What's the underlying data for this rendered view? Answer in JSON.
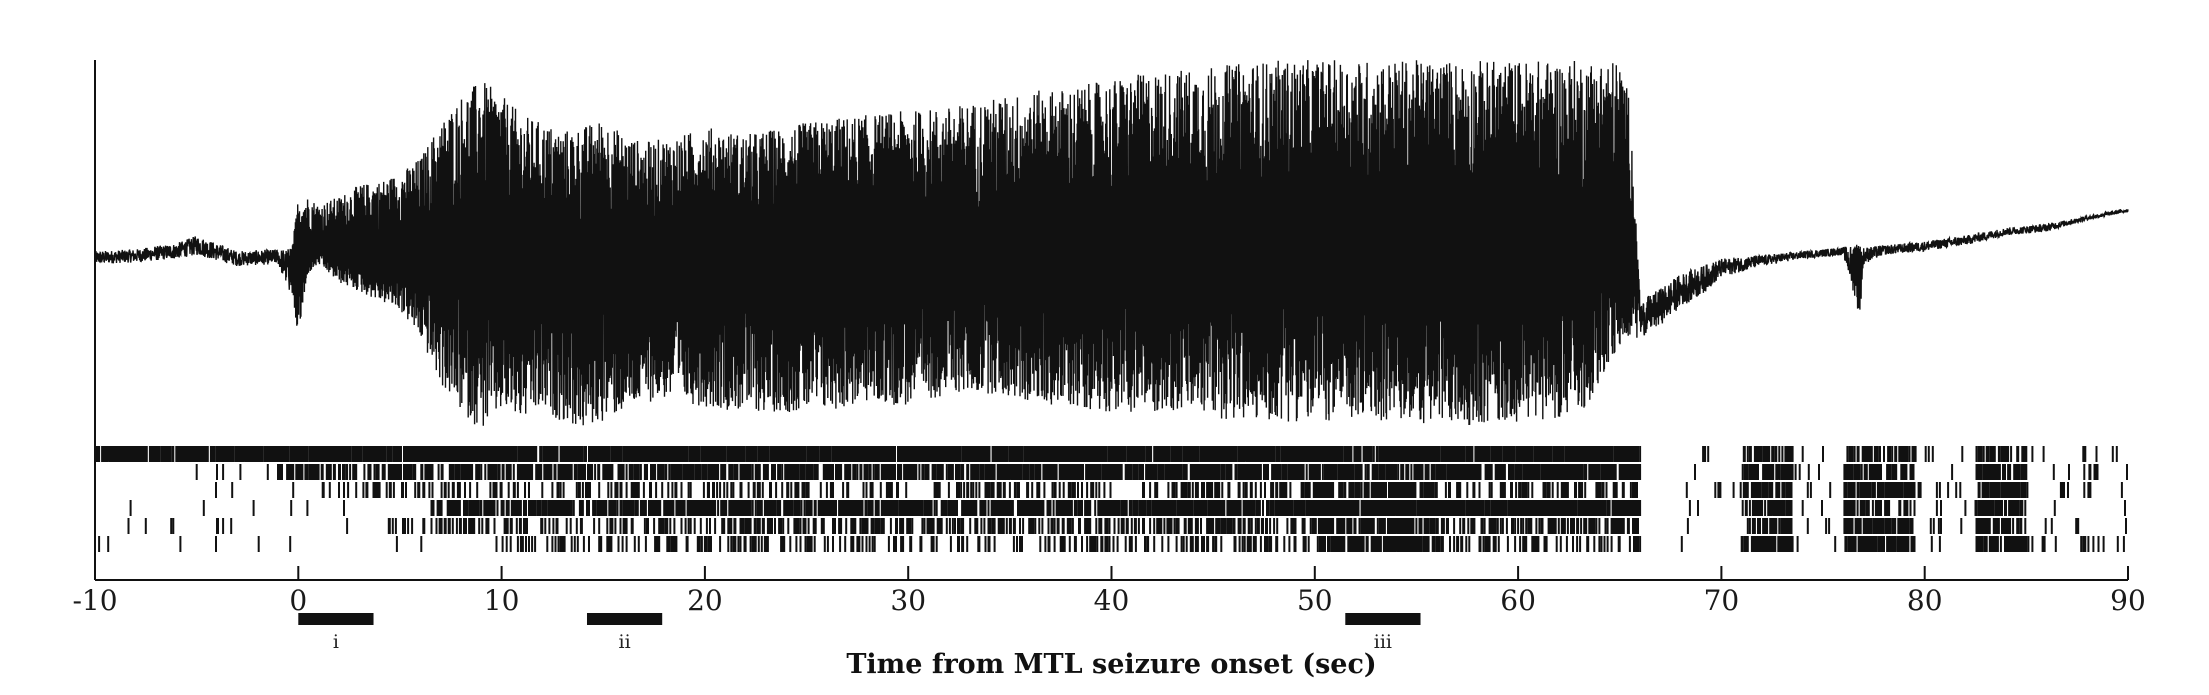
{
  "chart_data": {
    "type": "line",
    "title": "",
    "xlabel": "Time from MTL seizure onset (sec)",
    "ylabel": "",
    "xlim": [
      -10,
      90
    ],
    "x_ticks": [
      -10,
      0,
      10,
      20,
      30,
      40,
      50,
      60,
      70,
      80,
      90
    ],
    "x_tick_labels": [
      "-10",
      "0",
      "10",
      "20",
      "30",
      "40",
      "50",
      "60",
      "70",
      "80",
      "90"
    ],
    "grid": false,
    "legend": "none",
    "line_color": "#111111",
    "lfp_envelope": {
      "x": [
        -10,
        -8,
        -6,
        -5,
        -3,
        -1,
        -0.3,
        0,
        0.5,
        1,
        2,
        3,
        4,
        5,
        6,
        7,
        8,
        9,
        10,
        11,
        12,
        13,
        14,
        15,
        16,
        17,
        18,
        19,
        20,
        22,
        24,
        26,
        28,
        30,
        32,
        34,
        36,
        38,
        40,
        42,
        44,
        46,
        48,
        50,
        52,
        54,
        56,
        58,
        60,
        62,
        63,
        64,
        65,
        65.5,
        66,
        67,
        68,
        69,
        70,
        72,
        74,
        76,
        76.8,
        77,
        78,
        80,
        82,
        84,
        86,
        88,
        90
      ],
      "upper": [
        0.02,
        0.03,
        0.06,
        0.1,
        0.02,
        0.03,
        0.04,
        0.3,
        0.3,
        0.26,
        0.3,
        0.36,
        0.38,
        0.42,
        0.5,
        0.68,
        0.82,
        0.9,
        0.82,
        0.72,
        0.68,
        0.64,
        0.66,
        0.7,
        0.62,
        0.58,
        0.6,
        0.62,
        0.66,
        0.62,
        0.66,
        0.7,
        0.72,
        0.74,
        0.76,
        0.8,
        0.84,
        0.86,
        0.9,
        0.94,
        0.96,
        0.98,
        1.0,
        1.0,
        1.0,
        1.0,
        1.0,
        1.0,
        1.0,
        1.0,
        1.0,
        1.0,
        1.0,
        0.8,
        -0.25,
        -0.18,
        -0.1,
        -0.06,
        -0.02,
        0.0,
        0.02,
        0.04,
        0.06,
        0.04,
        0.05,
        0.07,
        0.1,
        0.14,
        0.16,
        0.2,
        0.24
      ],
      "lower": [
        -0.05,
        -0.04,
        -0.02,
        0.0,
        -0.06,
        -0.05,
        -0.25,
        -0.45,
        -0.1,
        -0.05,
        -0.15,
        -0.2,
        -0.25,
        -0.3,
        -0.45,
        -0.7,
        -0.85,
        -0.95,
        -0.85,
        -0.9,
        -0.85,
        -0.9,
        -0.95,
        -0.9,
        -0.85,
        -0.8,
        -0.78,
        -0.8,
        -0.82,
        -0.85,
        -0.85,
        -0.85,
        -0.8,
        -0.82,
        -0.75,
        -0.75,
        -0.8,
        -0.82,
        -0.85,
        -0.85,
        -0.85,
        -0.9,
        -0.9,
        -0.9,
        -0.9,
        -0.9,
        -0.92,
        -0.92,
        -0.9,
        -0.88,
        -0.88,
        -0.7,
        -0.5,
        -0.45,
        -0.45,
        -0.38,
        -0.28,
        -0.22,
        -0.12,
        -0.06,
        -0.02,
        0.0,
        -0.35,
        -0.05,
        0.0,
        0.02,
        0.05,
        0.1,
        0.12,
        0.18,
        0.22
      ]
    },
    "raster": {
      "rows": 6,
      "bursts": [
        {
          "t0": 50.0,
          "t1": 56.0
        },
        {
          "t0": 71.0,
          "t1": 73.5
        },
        {
          "t0": 76.0,
          "t1": 79.5
        },
        {
          "t0": 82.5,
          "t1": 85.0
        }
      ]
    },
    "periods": [
      {
        "label": "i",
        "start": 0.0,
        "end": 3.7
      },
      {
        "label": "ii",
        "start": 14.2,
        "end": 17.9
      },
      {
        "label": "iii",
        "start": 51.5,
        "end": 55.2
      }
    ]
  }
}
